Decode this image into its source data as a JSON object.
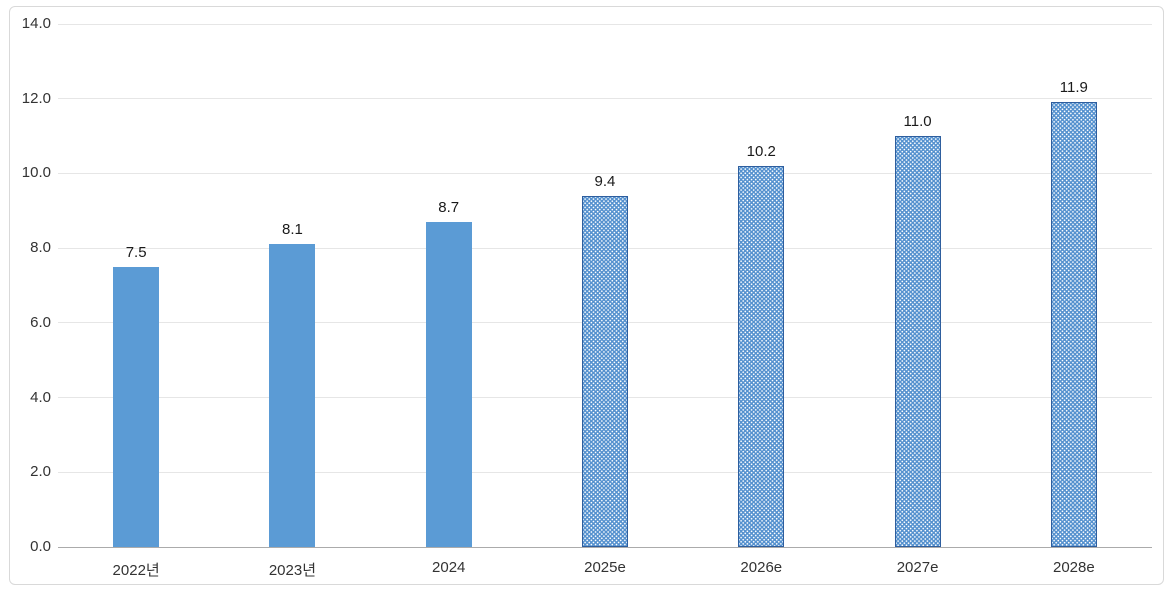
{
  "chart_data": {
    "type": "bar",
    "categories": [
      "2022년",
      "2023년",
      "2024",
      "2025e",
      "2026e",
      "2027e",
      "2028e"
    ],
    "values": [
      7.5,
      8.1,
      8.7,
      9.4,
      10.2,
      11.0,
      11.9
    ],
    "data_labels": [
      "7.5",
      "8.1",
      "8.7",
      "9.4",
      "10.2",
      "11.0",
      "11.9"
    ],
    "estimate_flags": [
      false,
      false,
      false,
      true,
      true,
      true,
      true
    ],
    "title": "",
    "xlabel": "",
    "ylabel": "",
    "ylim": [
      0,
      14
    ],
    "ytick_step": 2,
    "ytick_labels": [
      "0.0",
      "2.0",
      "4.0",
      "6.0",
      "8.0",
      "10.0",
      "12.0",
      "14.0"
    ],
    "grid": true,
    "legend": "none",
    "colors": {
      "bar_solid": "#5B9BD5",
      "bar_pattern_bg": "#5390CE",
      "bar_pattern_dot": "#FFFFFF",
      "bar_pattern_border": "#2E5E9E",
      "gridline": "#E6E6E6",
      "axis_line": "#ABABAB",
      "tick_text": "#333333",
      "label_text": "#1A1A1A",
      "chart_border": "#D9D9D9"
    }
  }
}
